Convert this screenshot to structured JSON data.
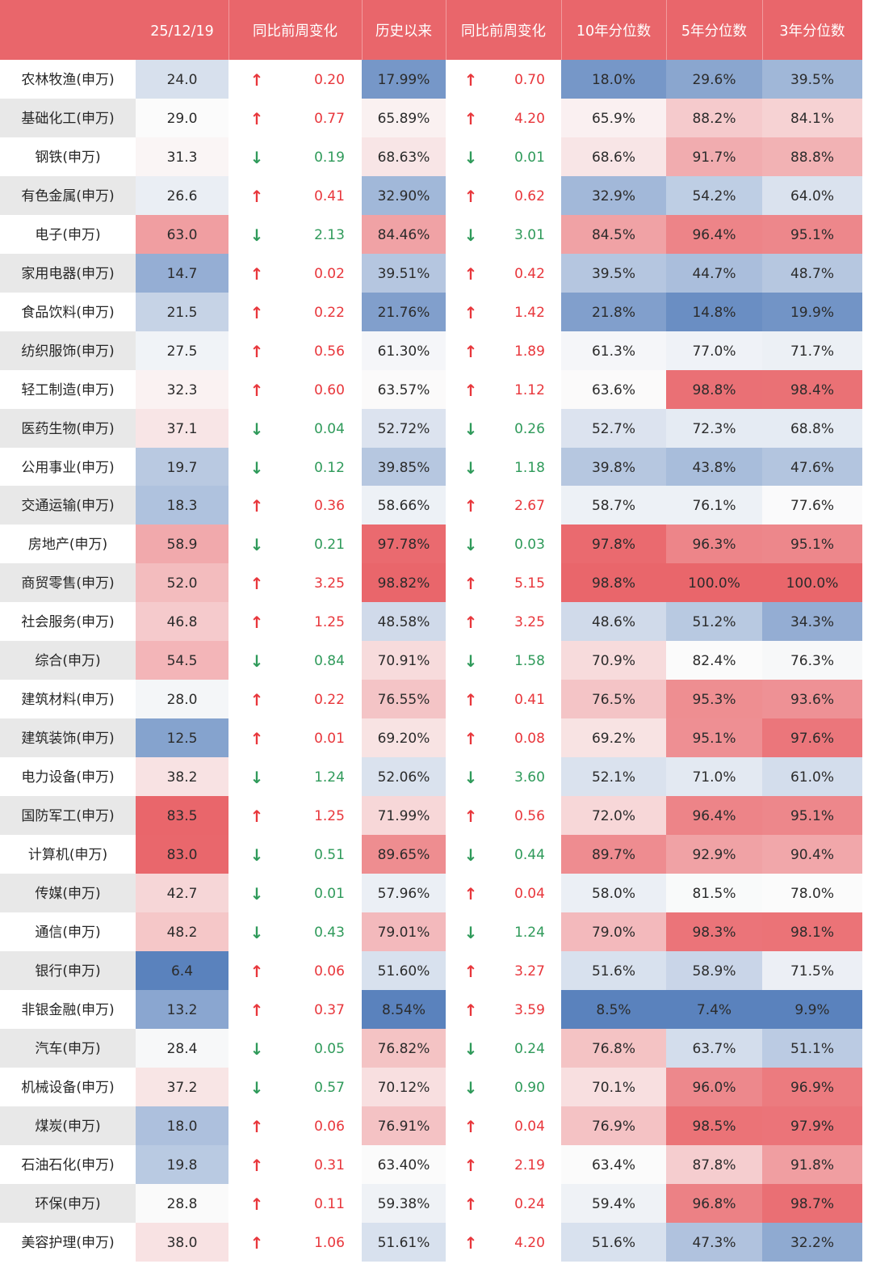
{
  "chart_data": {
    "type": "table",
    "columns": [
      "",
      "25/12/19",
      "同比前周变化",
      "历史以来",
      "同比前周变化",
      "10年分位数",
      "5年分位数",
      "3年分位数"
    ],
    "rows": [
      {
        "name": "农林牧渔(申万)",
        "v": "24.0",
        "a1": "up",
        "c1": "0.20",
        "hist": "17.99%",
        "a2": "up",
        "c2": "0.70",
        "p10": "18.0%",
        "p5": "29.6%",
        "p3": "39.5%"
      },
      {
        "name": "基础化工(申万)",
        "v": "29.0",
        "a1": "up",
        "c1": "0.77",
        "hist": "65.89%",
        "a2": "up",
        "c2": "4.20",
        "p10": "65.9%",
        "p5": "88.2%",
        "p3": "84.1%"
      },
      {
        "name": "钢铁(申万)",
        "v": "31.3",
        "a1": "down",
        "c1": "0.19",
        "hist": "68.63%",
        "a2": "down",
        "c2": "0.01",
        "p10": "68.6%",
        "p5": "91.7%",
        "p3": "88.8%"
      },
      {
        "name": "有色金属(申万)",
        "v": "26.6",
        "a1": "up",
        "c1": "0.41",
        "hist": "32.90%",
        "a2": "up",
        "c2": "0.62",
        "p10": "32.9%",
        "p5": "54.2%",
        "p3": "64.0%"
      },
      {
        "name": "电子(申万)",
        "v": "63.0",
        "a1": "down",
        "c1": "2.13",
        "hist": "84.46%",
        "a2": "down",
        "c2": "3.01",
        "p10": "84.5%",
        "p5": "96.4%",
        "p3": "95.1%"
      },
      {
        "name": "家用电器(申万)",
        "v": "14.7",
        "a1": "up",
        "c1": "0.02",
        "hist": "39.51%",
        "a2": "up",
        "c2": "0.42",
        "p10": "39.5%",
        "p5": "44.7%",
        "p3": "48.7%"
      },
      {
        "name": "食品饮料(申万)",
        "v": "21.5",
        "a1": "up",
        "c1": "0.22",
        "hist": "21.76%",
        "a2": "up",
        "c2": "1.42",
        "p10": "21.8%",
        "p5": "14.8%",
        "p3": "19.9%"
      },
      {
        "name": "纺织服饰(申万)",
        "v": "27.5",
        "a1": "up",
        "c1": "0.56",
        "hist": "61.30%",
        "a2": "up",
        "c2": "1.89",
        "p10": "61.3%",
        "p5": "77.0%",
        "p3": "71.7%"
      },
      {
        "name": "轻工制造(申万)",
        "v": "32.3",
        "a1": "up",
        "c1": "0.60",
        "hist": "63.57%",
        "a2": "up",
        "c2": "1.12",
        "p10": "63.6%",
        "p5": "98.8%",
        "p3": "98.4%"
      },
      {
        "name": "医药生物(申万)",
        "v": "37.1",
        "a1": "down",
        "c1": "0.04",
        "hist": "52.72%",
        "a2": "down",
        "c2": "0.26",
        "p10": "52.7%",
        "p5": "72.3%",
        "p3": "68.8%"
      },
      {
        "name": "公用事业(申万)",
        "v": "19.7",
        "a1": "down",
        "c1": "0.12",
        "hist": "39.85%",
        "a2": "down",
        "c2": "1.18",
        "p10": "39.8%",
        "p5": "43.8%",
        "p3": "47.6%"
      },
      {
        "name": "交通运输(申万)",
        "v": "18.3",
        "a1": "up",
        "c1": "0.36",
        "hist": "58.66%",
        "a2": "up",
        "c2": "2.67",
        "p10": "58.7%",
        "p5": "76.1%",
        "p3": "77.6%"
      },
      {
        "name": "房地产(申万)",
        "v": "58.9",
        "a1": "down",
        "c1": "0.21",
        "hist": "97.78%",
        "a2": "down",
        "c2": "0.03",
        "p10": "97.8%",
        "p5": "96.3%",
        "p3": "95.1%"
      },
      {
        "name": "商贸零售(申万)",
        "v": "52.0",
        "a1": "up",
        "c1": "3.25",
        "hist": "98.82%",
        "a2": "up",
        "c2": "5.15",
        "p10": "98.8%",
        "p5": "100.0%",
        "p3": "100.0%"
      },
      {
        "name": "社会服务(申万)",
        "v": "46.8",
        "a1": "up",
        "c1": "1.25",
        "hist": "48.58%",
        "a2": "up",
        "c2": "3.25",
        "p10": "48.6%",
        "p5": "51.2%",
        "p3": "34.3%"
      },
      {
        "name": "综合(申万)",
        "v": "54.5",
        "a1": "down",
        "c1": "0.84",
        "hist": "70.91%",
        "a2": "down",
        "c2": "1.58",
        "p10": "70.9%",
        "p5": "82.4%",
        "p3": "76.3%"
      },
      {
        "name": "建筑材料(申万)",
        "v": "28.0",
        "a1": "up",
        "c1": "0.22",
        "hist": "76.55%",
        "a2": "up",
        "c2": "0.41",
        "p10": "76.5%",
        "p5": "95.3%",
        "p3": "93.6%"
      },
      {
        "name": "建筑装饰(申万)",
        "v": "12.5",
        "a1": "up",
        "c1": "0.01",
        "hist": "69.20%",
        "a2": "up",
        "c2": "0.08",
        "p10": "69.2%",
        "p5": "95.1%",
        "p3": "97.6%"
      },
      {
        "name": "电力设备(申万)",
        "v": "38.2",
        "a1": "down",
        "c1": "1.24",
        "hist": "52.06%",
        "a2": "down",
        "c2": "3.60",
        "p10": "52.1%",
        "p5": "71.0%",
        "p3": "61.0%"
      },
      {
        "name": "国防军工(申万)",
        "v": "83.5",
        "a1": "up",
        "c1": "1.25",
        "hist": "71.99%",
        "a2": "up",
        "c2": "0.56",
        "p10": "72.0%",
        "p5": "96.4%",
        "p3": "95.1%"
      },
      {
        "name": "计算机(申万)",
        "v": "83.0",
        "a1": "down",
        "c1": "0.51",
        "hist": "89.65%",
        "a2": "down",
        "c2": "0.44",
        "p10": "89.7%",
        "p5": "92.9%",
        "p3": "90.4%"
      },
      {
        "name": "传媒(申万)",
        "v": "42.7",
        "a1": "down",
        "c1": "0.01",
        "hist": "57.96%",
        "a2": "up",
        "c2": "0.04",
        "p10": "58.0%",
        "p5": "81.5%",
        "p3": "78.0%"
      },
      {
        "name": "通信(申万)",
        "v": "48.2",
        "a1": "down",
        "c1": "0.43",
        "hist": "79.01%",
        "a2": "down",
        "c2": "1.24",
        "p10": "79.0%",
        "p5": "98.3%",
        "p3": "98.1%"
      },
      {
        "name": "银行(申万)",
        "v": "6.4",
        "a1": "up",
        "c1": "0.06",
        "hist": "51.60%",
        "a2": "up",
        "c2": "3.27",
        "p10": "51.6%",
        "p5": "58.9%",
        "p3": "71.5%"
      },
      {
        "name": "非银金融(申万)",
        "v": "13.2",
        "a1": "up",
        "c1": "0.37",
        "hist": "8.54%",
        "a2": "up",
        "c2": "3.59",
        "p10": "8.5%",
        "p5": "7.4%",
        "p3": "9.9%"
      },
      {
        "name": "汽车(申万)",
        "v": "28.4",
        "a1": "down",
        "c1": "0.05",
        "hist": "76.82%",
        "a2": "down",
        "c2": "0.24",
        "p10": "76.8%",
        "p5": "63.7%",
        "p3": "51.1%"
      },
      {
        "name": "机械设备(申万)",
        "v": "37.2",
        "a1": "down",
        "c1": "0.57",
        "hist": "70.12%",
        "a2": "down",
        "c2": "0.90",
        "p10": "70.1%",
        "p5": "96.0%",
        "p3": "96.9%"
      },
      {
        "name": "煤炭(申万)",
        "v": "18.0",
        "a1": "up",
        "c1": "0.06",
        "hist": "76.91%",
        "a2": "up",
        "c2": "0.04",
        "p10": "76.9%",
        "p5": "98.5%",
        "p3": "97.9%"
      },
      {
        "name": "石油石化(申万)",
        "v": "19.8",
        "a1": "up",
        "c1": "0.31",
        "hist": "63.40%",
        "a2": "up",
        "c2": "2.19",
        "p10": "63.4%",
        "p5": "87.8%",
        "p3": "91.8%"
      },
      {
        "name": "环保(申万)",
        "v": "28.8",
        "a1": "up",
        "c1": "0.11",
        "hist": "59.38%",
        "a2": "up",
        "c2": "0.24",
        "p10": "59.4%",
        "p5": "96.8%",
        "p3": "98.7%"
      },
      {
        "name": "美容护理(申万)",
        "v": "38.0",
        "a1": "up",
        "c1": "1.06",
        "hist": "51.61%",
        "a2": "up",
        "c2": "4.20",
        "p10": "51.6%",
        "p5": "47.3%",
        "p3": "32.2%"
      }
    ]
  },
  "arrows": {
    "up": "↑",
    "down": "↓"
  },
  "colors": {
    "header": "#e9666b",
    "name_bg_alt": "#e8e8e8",
    "heat_low": "#5a82bd",
    "heat_mid": "#fbfbfb",
    "heat_high": "#e9666b",
    "arrow_up": "#e8363b",
    "arrow_down": "#2f9a5a"
  }
}
